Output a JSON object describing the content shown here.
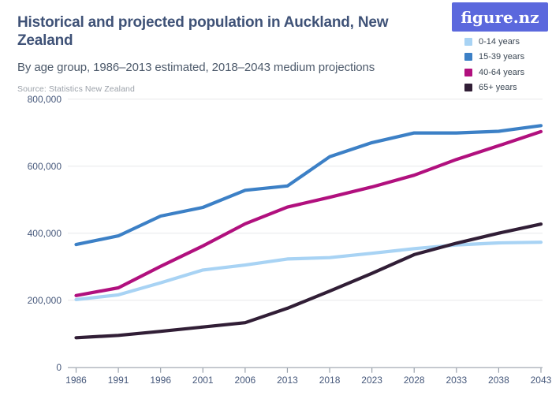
{
  "header": {
    "title": "Historical and projected population in Auckland, New Zealand",
    "subtitle": "By age group, 1986–2013 estimated, 2018–2043 medium projections",
    "source": "Source: Statistics New Zealand"
  },
  "logo": {
    "text": "figure.nz",
    "bg_color": "#5b68dd",
    "text_color": "#ffffff"
  },
  "legend": {
    "position": "top-right",
    "items": [
      {
        "label": "0-14 years",
        "color": "#a8d3f4"
      },
      {
        "label": "15-39 years",
        "color": "#3c80c6"
      },
      {
        "label": "40-64 years",
        "color": "#b1107e"
      },
      {
        "label": "65+ years",
        "color": "#311e36"
      }
    ]
  },
  "chart_data": {
    "type": "line",
    "title": "Historical and projected population in Auckland, New Zealand",
    "subtitle": "By age group, 1986–2013 estimated, 2018–2043 medium projections",
    "xlabel": "",
    "ylabel": "",
    "grid": true,
    "legend_position": "top-right",
    "ylim": [
      0,
      800000
    ],
    "yticks": [
      0,
      200000,
      400000,
      600000,
      800000
    ],
    "ytick_labels": [
      "0",
      "200,000",
      "400,000",
      "600,000",
      "800,000"
    ],
    "categories": [
      1986,
      1991,
      1996,
      2001,
      2006,
      2013,
      2018,
      2023,
      2028,
      2033,
      2038,
      2043
    ],
    "xtick_labels": [
      "1986",
      "1991",
      "1996",
      "2001",
      "2006",
      "2013",
      "2018",
      "2023",
      "2028",
      "2033",
      "2038",
      "2043"
    ],
    "series": [
      {
        "name": "0-14 years",
        "color": "#a8d3f4",
        "values": [
          202000,
          216000,
          252000,
          290000,
          305000,
          323000,
          327000,
          340000,
          354000,
          365000,
          371000,
          373000
        ]
      },
      {
        "name": "15-39 years",
        "color": "#3c80c6",
        "values": [
          366000,
          392000,
          451000,
          477000,
          528000,
          541000,
          628000,
          670000,
          699000,
          699000,
          704000,
          721000
        ]
      },
      {
        "name": "40-64 years",
        "color": "#b1107e",
        "values": [
          214000,
          237000,
          301000,
          362000,
          428000,
          478000,
          507000,
          538000,
          573000,
          620000,
          661000,
          703000
        ]
      },
      {
        "name": "65+ years",
        "color": "#311e36",
        "values": [
          88000,
          95000,
          107000,
          120000,
          133000,
          176000,
          227000,
          280000,
          336000,
          370000,
          400000,
          427000
        ]
      }
    ]
  },
  "style_colors": {
    "title": "#3f5277",
    "subtitle": "#4d5a6b",
    "source": "#9ba1a9",
    "axis_label": "#46587b",
    "gridline": "#e7e8ea",
    "axis_line": "#9aa2ac"
  }
}
